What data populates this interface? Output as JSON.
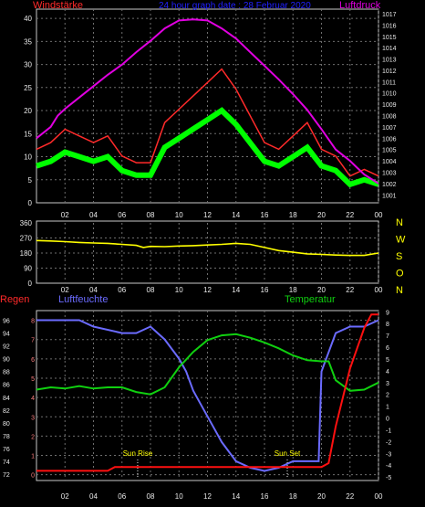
{
  "colors": {
    "wind": "#ff2a2a",
    "gust": "#00ff00",
    "pressure": "#e000e0",
    "direction": "#ffff00",
    "humidity": "#6b6bff",
    "temperature": "#10d010",
    "rain": "#ff1010",
    "frame": "#c8c8c8",
    "grid": "#6e6e6e",
    "title": "#2020ff"
  },
  "chart_data": [
    {
      "type": "line",
      "title": "24 hour graph date : 28 Februar 2020",
      "left_label": "Windstärke",
      "right_label": "Luftdruck",
      "x_ticks": [
        "02",
        "04",
        "06",
        "08",
        "10",
        "12",
        "14",
        "16",
        "18",
        "20",
        "22",
        "00"
      ],
      "y_left": {
        "range": [
          0,
          42
        ],
        "ticks": [
          0,
          5,
          10,
          15,
          20,
          25,
          30,
          35,
          40
        ]
      },
      "y_right": {
        "range": [
          1000.3,
          1017.4
        ],
        "ticks": [
          1001,
          1002,
          1003,
          1004,
          1005,
          1006,
          1007,
          1008,
          1009,
          1010,
          1011,
          1012,
          1013,
          1014,
          1015,
          1016,
          1017
        ]
      },
      "series": [
        {
          "name": "Windstärke",
          "axis": "left",
          "x": [
            0,
            1,
            2,
            3,
            4,
            5,
            6,
            7,
            8,
            9,
            10,
            11,
            12,
            13,
            14,
            15,
            16,
            17,
            18,
            19,
            20,
            21,
            22,
            23,
            24
          ],
          "values": [
            8,
            9,
            11,
            10,
            9,
            10,
            7,
            6,
            6,
            12,
            14,
            16,
            18,
            20,
            17,
            13,
            9,
            8,
            10,
            12,
            8,
            7,
            4,
            5,
            4
          ]
        },
        {
          "name": "Luftdruck",
          "axis": "right",
          "x": [
            0,
            1,
            1.5,
            2,
            3,
            4,
            5,
            6,
            7,
            8,
            9,
            10,
            11,
            12,
            13,
            14,
            15,
            16,
            17,
            18,
            19,
            20,
            21,
            22,
            22.5,
            23,
            24
          ],
          "values": [
            1006,
            1007,
            1008,
            1008.6,
            1009.6,
            1010.6,
            1011.6,
            1012.5,
            1013.6,
            1014.6,
            1015.7,
            1016.4,
            1016.5,
            1016.4,
            1015.7,
            1014.8,
            1013.6,
            1012.4,
            1011.2,
            1009.9,
            1008.5,
            1006.8,
            1005,
            1004,
            1003.4,
            1002.8,
            1002
          ]
        }
      ]
    },
    {
      "type": "line",
      "right_labels": [
        "N",
        "W",
        "S",
        "O",
        "N"
      ],
      "x_ticks": [
        "02",
        "04",
        "06",
        "08",
        "10",
        "12",
        "14",
        "16",
        "18",
        "20",
        "22",
        "00"
      ],
      "y": {
        "range": [
          0,
          360
        ],
        "ticks": [
          0,
          90,
          180,
          270,
          360
        ]
      },
      "series": [
        {
          "name": "Windrichtung",
          "x": [
            0,
            1,
            2,
            3,
            4,
            5,
            6,
            7,
            7.5,
            8,
            9,
            10,
            11,
            12,
            13,
            14,
            15,
            16,
            17,
            18,
            19,
            20,
            21,
            22,
            23,
            24
          ],
          "values": [
            255,
            252,
            248,
            243,
            240,
            238,
            232,
            226,
            213,
            220,
            218,
            222,
            224,
            228,
            232,
            238,
            232,
            213,
            195,
            185,
            175,
            172,
            168,
            166,
            166,
            180
          ]
        }
      ]
    },
    {
      "type": "line",
      "left_label": "Regen",
      "series_labels": [
        "Luftfeuchte",
        "Temperatur"
      ],
      "annotations": [
        {
          "text": "Sun Rise",
          "x": 7.1
        },
        {
          "text": "Sun Set",
          "x": 17.6
        }
      ],
      "x_ticks": [
        "02",
        "04",
        "06",
        "08",
        "10",
        "12",
        "14",
        "16",
        "18",
        "20",
        "22",
        "00"
      ],
      "y_rain": {
        "range": [
          -0.3,
          8.5
        ],
        "ticks": [
          0,
          1,
          2,
          3,
          4,
          5,
          6,
          7,
          8
        ]
      },
      "y_humidity": {
        "range": [
          71,
          97.5
        ],
        "ticks": [
          72,
          74,
          76,
          78,
          80,
          82,
          84,
          86,
          88,
          90,
          92,
          94,
          96
        ]
      },
      "y_temperature": {
        "range": [
          -5.3,
          9.1
        ],
        "ticks": [
          -5,
          -4,
          -3,
          -2,
          -1,
          0,
          1,
          2,
          3,
          4,
          5,
          6,
          7,
          8,
          9
        ]
      },
      "series": [
        {
          "name": "Luftfeuchte",
          "axis": "humidity",
          "x": [
            0,
            3,
            4,
            6,
            7,
            8,
            9,
            10,
            10.5,
            11,
            11.5,
            12,
            12.5,
            13,
            14,
            15,
            16,
            17,
            18,
            19,
            19.8,
            20,
            21,
            22,
            23,
            24
          ],
          "values": [
            96,
            96,
            95,
            94,
            94,
            95,
            93,
            90,
            88,
            85,
            83,
            81,
            79,
            77,
            74,
            73,
            72.5,
            73,
            74,
            74,
            74,
            88,
            94,
            95,
            95,
            96
          ]
        },
        {
          "name": "Temperatur",
          "axis": "temperature",
          "x": [
            0,
            1,
            2,
            3,
            4,
            5,
            6,
            7,
            8,
            9,
            10,
            11,
            12,
            13,
            14,
            15,
            16,
            17,
            18,
            19,
            20,
            20.5,
            21,
            22,
            23,
            24
          ],
          "values": [
            2.4,
            2.6,
            2.5,
            2.7,
            2.5,
            2.6,
            2.6,
            2.2,
            2,
            2.6,
            4.3,
            5.6,
            6.6,
            7,
            7.1,
            6.8,
            6.4,
            5.9,
            5.3,
            4.9,
            4.8,
            4.8,
            3.2,
            2.3,
            2.4,
            3
          ]
        },
        {
          "name": "Regen",
          "axis": "rain",
          "x": [
            0,
            5,
            5.5,
            20,
            20.5,
            21,
            22,
            23,
            23.5,
            24
          ],
          "values": [
            0.2,
            0.2,
            0.4,
            0.4,
            0.6,
            2.5,
            5.5,
            7.6,
            8.3,
            8.3
          ]
        }
      ]
    }
  ]
}
